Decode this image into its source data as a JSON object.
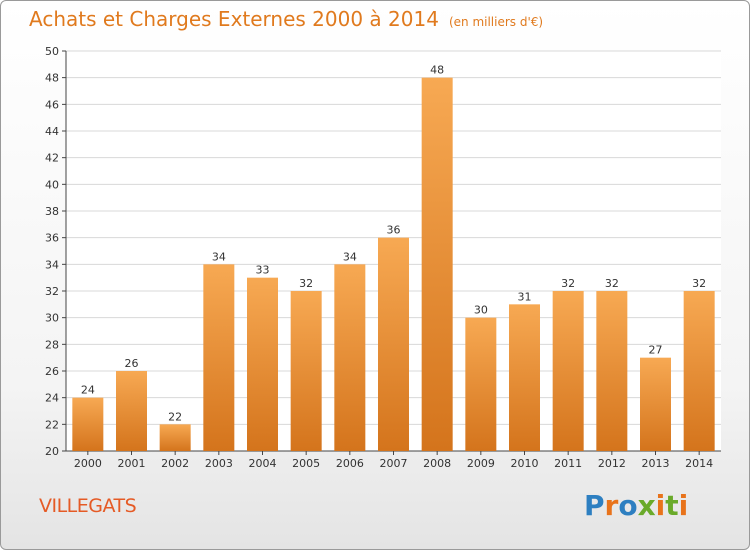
{
  "title": "Achats et Charges Externes 2000 à 2014",
  "unit": "(en milliers d'€)",
  "city": "VILLEGATS",
  "logo": {
    "text": "Proxiti",
    "colors": [
      "#2d7fc1",
      "#e8731b",
      "#2d7fc1",
      "#6aaa2a",
      "#e8731b",
      "#6aaa2a",
      "#e8731b"
    ]
  },
  "colors": {
    "bar_top": "#f7a953",
    "bar_bottom": "#d4741c",
    "title": "#e07a1e",
    "city": "#e55a25"
  },
  "chart_data": {
    "type": "bar",
    "categories": [
      "2000",
      "2001",
      "2002",
      "2003",
      "2004",
      "2005",
      "2006",
      "2007",
      "2008",
      "2009",
      "2010",
      "2011",
      "2012",
      "2013",
      "2014"
    ],
    "values": [
      24,
      26,
      22,
      34,
      33,
      32,
      34,
      36,
      48,
      30,
      31,
      32,
      32,
      27,
      32
    ],
    "ylim": [
      20,
      50
    ],
    "yticks": [
      20,
      22,
      24,
      26,
      28,
      30,
      32,
      34,
      36,
      38,
      40,
      42,
      44,
      46,
      48,
      50
    ],
    "grid": true
  }
}
